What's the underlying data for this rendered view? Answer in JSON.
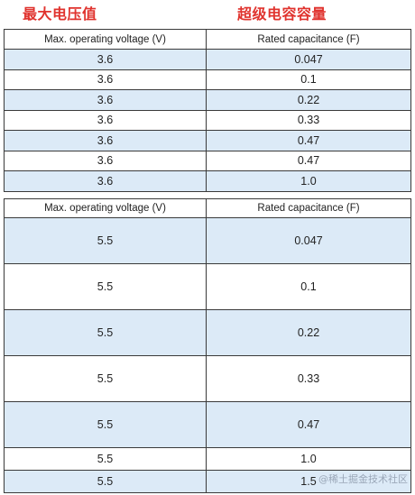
{
  "headings": {
    "left": "最大电压值",
    "right": "超级电容容量"
  },
  "table1": {
    "headers": [
      "Max. operating voltage (V)",
      "Rated capacitance (F)"
    ],
    "rows": [
      [
        "3.6",
        "0.047"
      ],
      [
        "3.6",
        "0.1"
      ],
      [
        "3.6",
        "0.22"
      ],
      [
        "3.6",
        "0.33"
      ],
      [
        "3.6",
        "0.47"
      ],
      [
        "3.6",
        "0.47"
      ],
      [
        "3.6",
        "1.0"
      ]
    ]
  },
  "table2": {
    "headers": [
      "Max. operating voltage (V)",
      "Rated capacitance (F)"
    ],
    "rows": [
      [
        "5.5",
        "0.047"
      ],
      [
        "5.5",
        "0.1"
      ],
      [
        "5.5",
        "0.22"
      ],
      [
        "5.5",
        "0.33"
      ],
      [
        "5.5",
        "0.47"
      ],
      [
        "5.5",
        "1.0"
      ],
      [
        "5.5",
        "1.5"
      ]
    ]
  },
  "watermark": "@稀土掘金技术社区",
  "colors": {
    "heading": "#e0332e",
    "row_fill": "#dceaf7",
    "border": "#3a3a3a"
  }
}
